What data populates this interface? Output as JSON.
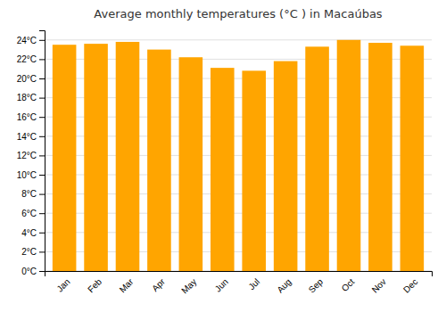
{
  "chart_data": {
    "type": "bar",
    "title": "Average monthly temperatures (°C ) in Macaúbas",
    "categories": [
      "Jan",
      "Feb",
      "Mar",
      "Apr",
      "May",
      "Jun",
      "Jul",
      "Aug",
      "Sep",
      "Oct",
      "Nov",
      "Dec"
    ],
    "values": [
      23.5,
      23.6,
      23.8,
      23.0,
      22.2,
      21.1,
      20.8,
      21.8,
      23.3,
      24.0,
      23.7,
      23.4
    ],
    "color": "#FFA500",
    "ylim": [
      0,
      25
    ],
    "yticks": [
      {
        "value": 0,
        "label": "0°C"
      },
      {
        "value": 2,
        "label": "2°C"
      },
      {
        "value": 4,
        "label": "4°C"
      },
      {
        "value": 6,
        "label": "6°C"
      },
      {
        "value": 8,
        "label": "8°C"
      },
      {
        "value": 10,
        "label": "10°C"
      },
      {
        "value": 12,
        "label": "12°C"
      },
      {
        "value": 14,
        "label": "14°C"
      },
      {
        "value": 16,
        "label": "16°C"
      },
      {
        "value": 18,
        "label": "18°C"
      },
      {
        "value": 20,
        "label": "20°C"
      },
      {
        "value": 22,
        "label": "22°C"
      },
      {
        "value": 24,
        "label": "24°C"
      }
    ],
    "grid": true
  }
}
